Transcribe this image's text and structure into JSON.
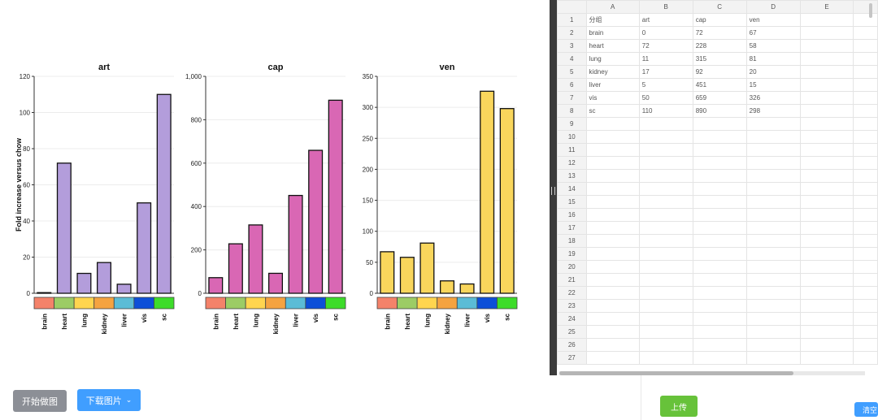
{
  "chart_data": [
    {
      "type": "bar",
      "title": "art",
      "ylabel": "Fold increase versus chow",
      "categories": [
        "brain",
        "heart",
        "lung",
        "kidney",
        "liver",
        "vis",
        "sc"
      ],
      "values": [
        0,
        72,
        11,
        17,
        5,
        50,
        110
      ],
      "ylim": [
        0,
        120
      ],
      "yticks": [
        0,
        20,
        40,
        60,
        80,
        100,
        120
      ],
      "ytick_labels": [
        "0",
        "20",
        "40",
        "60",
        "80",
        "100",
        "120"
      ],
      "bar_color": "#b39ddb",
      "grid": true
    },
    {
      "type": "bar",
      "title": "cap",
      "ylabel": "",
      "categories": [
        "brain",
        "heart",
        "lung",
        "kidney",
        "liver",
        "vis",
        "sc"
      ],
      "values": [
        72,
        228,
        315,
        92,
        451,
        659,
        890
      ],
      "ylim": [
        0,
        1000
      ],
      "yticks": [
        0,
        200,
        400,
        600,
        800,
        1000
      ],
      "ytick_labels": [
        "0",
        "200",
        "400",
        "600",
        "800",
        "1,000"
      ],
      "bar_color": "#d967b4",
      "grid": true
    },
    {
      "type": "bar",
      "title": "ven",
      "ylabel": "",
      "categories": [
        "brain",
        "heart",
        "lung",
        "kidney",
        "liver",
        "vis",
        "sc"
      ],
      "values": [
        67,
        58,
        81,
        20,
        15,
        326,
        298
      ],
      "ylim": [
        0,
        350
      ],
      "yticks": [
        0,
        50,
        100,
        150,
        200,
        250,
        300,
        350
      ],
      "ytick_labels": [
        "0",
        "50",
        "100",
        "150",
        "200",
        "250",
        "300",
        "350"
      ],
      "bar_color": "#f9d65c",
      "grid": true
    }
  ],
  "category_colors": [
    "#f4826a",
    "#9ccc65",
    "#ffd54f",
    "#f5a340",
    "#5bbcd6",
    "#0d4fd8",
    "#3ddc2a"
  ],
  "buttons": {
    "start": "开始做图",
    "download": "下载图片",
    "upload": "上传",
    "clear": "清空"
  },
  "spreadsheet": {
    "columns": [
      "A",
      "B",
      "C",
      "D",
      "E"
    ],
    "rows": [
      [
        "分组",
        "art",
        "cap",
        "ven",
        ""
      ],
      [
        "brain",
        "0",
        "72",
        "67",
        ""
      ],
      [
        "heart",
        "72",
        "228",
        "58",
        ""
      ],
      [
        "lung",
        "11",
        "315",
        "81",
        ""
      ],
      [
        "kidney",
        "17",
        "92",
        "20",
        ""
      ],
      [
        "liver",
        "5",
        "451",
        "15",
        ""
      ],
      [
        "vis",
        "50",
        "659",
        "326",
        ""
      ],
      [
        "sc",
        "110",
        "890",
        "298",
        ""
      ]
    ],
    "row_count": 27
  }
}
